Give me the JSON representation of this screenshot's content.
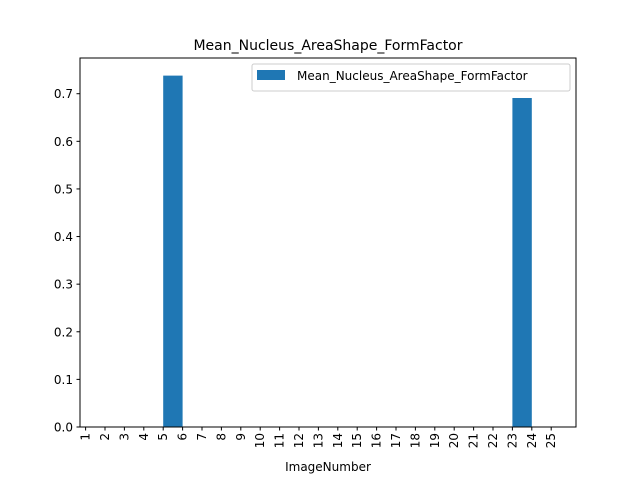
{
  "chart_data": {
    "type": "bar",
    "title": "Mean_Nucleus_AreaShape_FormFactor",
    "xlabel": "ImageNumber",
    "ylabel": "",
    "categories": [
      "1",
      "2",
      "3",
      "4",
      "5",
      "6",
      "7",
      "8",
      "9",
      "10",
      "11",
      "12",
      "13",
      "14",
      "15",
      "16",
      "17",
      "18",
      "19",
      "20",
      "21",
      "22",
      "23",
      "24",
      "25"
    ],
    "series": [
      {
        "name": "Mean_Nucleus_AreaShape_FormFactor",
        "values": [
          0,
          0,
          0,
          0,
          0.738,
          0,
          0,
          0,
          0,
          0,
          0,
          0,
          0,
          0,
          0,
          0,
          0,
          0,
          0,
          0,
          0,
          0,
          0.691,
          0,
          0
        ],
        "color": "#1f77b4"
      }
    ],
    "yticks": [
      "0.0",
      "0.1",
      "0.2",
      "0.3",
      "0.4",
      "0.5",
      "0.6",
      "0.7"
    ],
    "ylim": [
      0,
      0.775
    ],
    "grid": false,
    "legend_position": "top-right",
    "bar_alignment": "edge"
  }
}
